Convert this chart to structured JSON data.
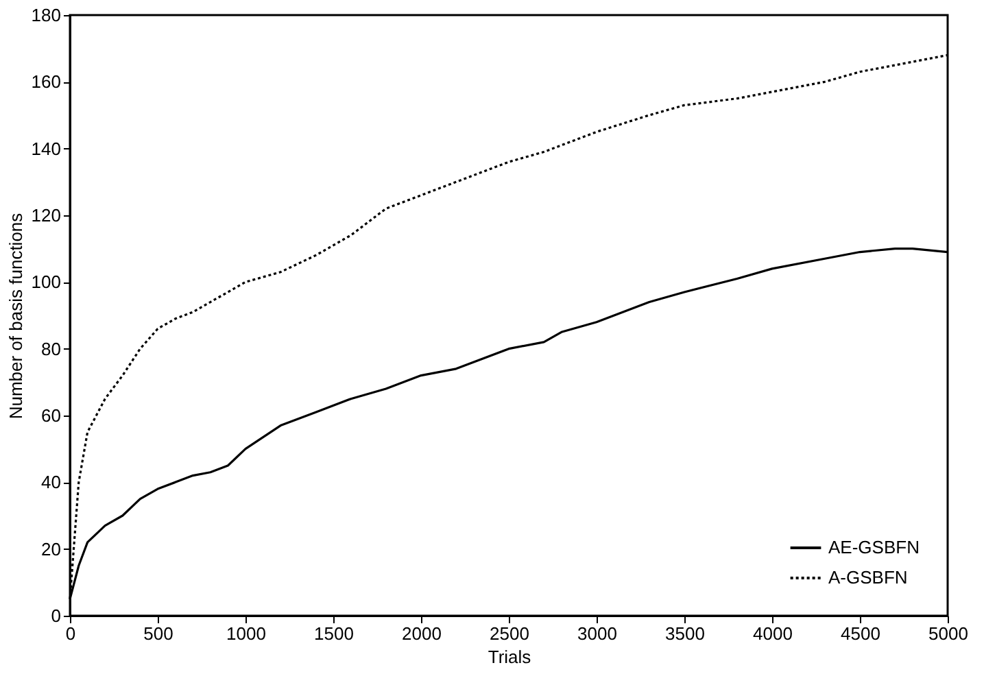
{
  "chart_data": {
    "type": "line",
    "xlabel": "Trials",
    "ylabel": "Number of basis functions",
    "xlim": [
      0,
      5000
    ],
    "xticks": [
      0,
      500,
      1000,
      1500,
      2000,
      2500,
      3000,
      3500,
      4000,
      4500,
      5000
    ],
    "ylim": [
      0,
      180
    ],
    "yticks": [
      0,
      20,
      40,
      60,
      80,
      100,
      120,
      140,
      160,
      180
    ],
    "grid": false,
    "legend": "bottom right",
    "x": [
      0,
      50,
      100,
      200,
      300,
      400,
      500,
      600,
      700,
      800,
      900,
      1000,
      1200,
      1400,
      1600,
      1800,
      2000,
      2200,
      2500,
      2700,
      2800,
      3000,
      3300,
      3500,
      3800,
      4000,
      4300,
      4500,
      4700,
      4800,
      5000
    ],
    "series": [
      {
        "name": "AE-GSBFN",
        "color": "#000000",
        "line_style": "solid",
        "values": [
          5,
          15,
          22,
          27,
          30,
          35,
          38,
          40,
          42,
          43,
          45,
          50,
          57,
          61,
          65,
          68,
          72,
          74,
          80,
          82,
          85,
          88,
          94,
          97,
          101,
          104,
          107,
          109,
          110,
          110,
          109
        ]
      },
      {
        "name": "A-GSBFN",
        "color": "#000000",
        "line_style": "dotted",
        "values": [
          5,
          40,
          55,
          65,
          72,
          80,
          86,
          89,
          91,
          94,
          97,
          100,
          103,
          108,
          114,
          122,
          126,
          130,
          136,
          139,
          141,
          145,
          150,
          153,
          155,
          157,
          160,
          163,
          165,
          166,
          168
        ]
      }
    ]
  }
}
